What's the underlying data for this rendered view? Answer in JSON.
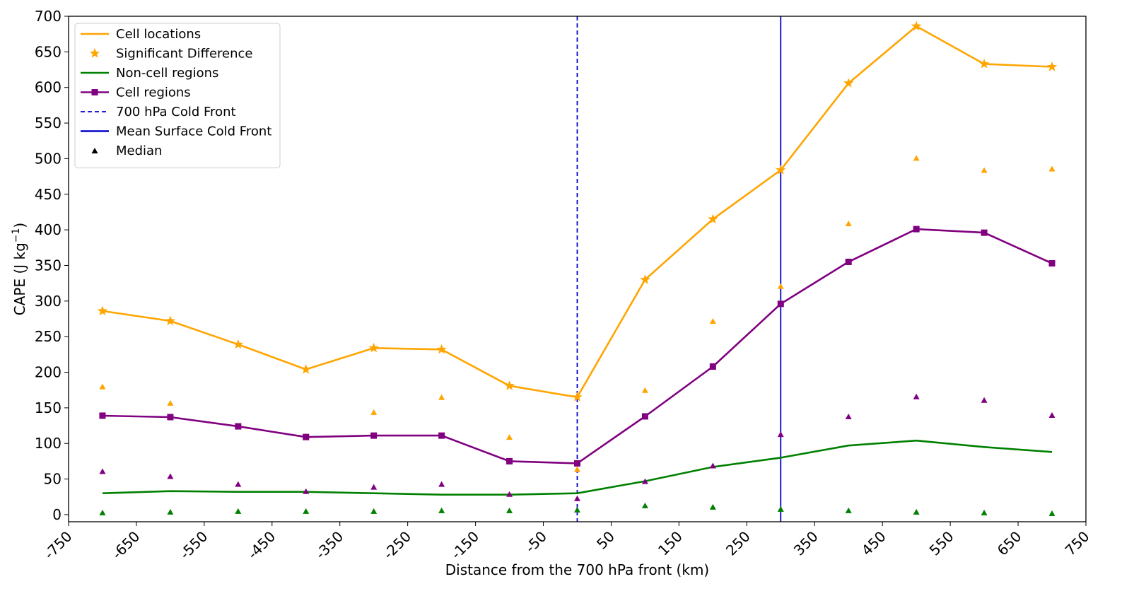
{
  "chart_data": {
    "type": "line",
    "xlabel": "Distance from the 700 hPa front (km)",
    "ylabel": "CAPE (J kg",
    "ylabel_exp": "−1",
    "ylabel_end": ")",
    "xlim": [
      -750,
      750
    ],
    "ylim": [
      -10,
      700
    ],
    "xticks": [
      -750,
      -650,
      -550,
      -450,
      -350,
      -250,
      -150,
      -50,
      50,
      150,
      250,
      350,
      450,
      550,
      650,
      750
    ],
    "yticks": [
      0,
      50,
      100,
      150,
      200,
      250,
      300,
      350,
      400,
      450,
      500,
      550,
      600,
      650,
      700
    ],
    "x": [
      -700,
      -600,
      -500,
      -400,
      -300,
      -200,
      -100,
      0,
      100,
      200,
      300,
      400,
      500,
      600,
      700
    ],
    "series": [
      {
        "key": "cell-locations",
        "name": "Cell locations",
        "color": "#FFA500",
        "marker": "star",
        "values": [
          286,
          272,
          239,
          204,
          234,
          232,
          181,
          165,
          330,
          415,
          484,
          606,
          686,
          633,
          629
        ],
        "medians": [
          179,
          156,
          124,
          109,
          143,
          164,
          108,
          63,
          174,
          271,
          320,
          408,
          500,
          483,
          485
        ]
      },
      {
        "key": "non-cell-regions",
        "name": "Non-cell regions",
        "color": "#008000",
        "marker": "none",
        "values": [
          30,
          33,
          32,
          32,
          30,
          28,
          28,
          30,
          47,
          67,
          80,
          97,
          104,
          95,
          88
        ],
        "medians": [
          2,
          3,
          4,
          4,
          4,
          5,
          5,
          6,
          12,
          10,
          7,
          5,
          3,
          2,
          1
        ]
      },
      {
        "key": "cell-regions",
        "name": "Cell regions",
        "color": "#800080",
        "marker": "square",
        "values": [
          139,
          137,
          124,
          109,
          111,
          111,
          75,
          72,
          138,
          208,
          296,
          355,
          401,
          396,
          353
        ],
        "medians": [
          60,
          53,
          42,
          32,
          38,
          42,
          28,
          22,
          46,
          68,
          112,
          137,
          165,
          160,
          139
        ]
      }
    ],
    "vlines": [
      {
        "key": "front-700",
        "name": "700 hPa Cold Front",
        "x": 0,
        "color": "#0000CD",
        "style": "dashed"
      },
      {
        "key": "front-surface",
        "name": "Mean Surface Cold Front",
        "x": 300,
        "color": "#0000CD",
        "style": "solid"
      }
    ],
    "legend": {
      "position": "top-left",
      "entries": [
        {
          "key": "cell-locations",
          "label": "Cell locations",
          "kind": "line",
          "color": "#FFA500"
        },
        {
          "key": "significant-difference",
          "label": "Significant Difference",
          "kind": "star",
          "color": "#FFA500"
        },
        {
          "key": "non-cell-regions",
          "label": "Non-cell regions",
          "kind": "line",
          "color": "#008000"
        },
        {
          "key": "cell-regions",
          "label": "Cell regions",
          "kind": "line-square",
          "color": "#800080"
        },
        {
          "key": "front-700",
          "label": "700 hPa Cold Front",
          "kind": "dashed",
          "color": "#0000CD"
        },
        {
          "key": "front-surface",
          "label": "Mean Surface Cold Front",
          "kind": "line",
          "color": "#0000CD"
        },
        {
          "key": "median",
          "label": "Median",
          "kind": "triangle",
          "color": "#000000"
        }
      ]
    },
    "grid": false
  }
}
